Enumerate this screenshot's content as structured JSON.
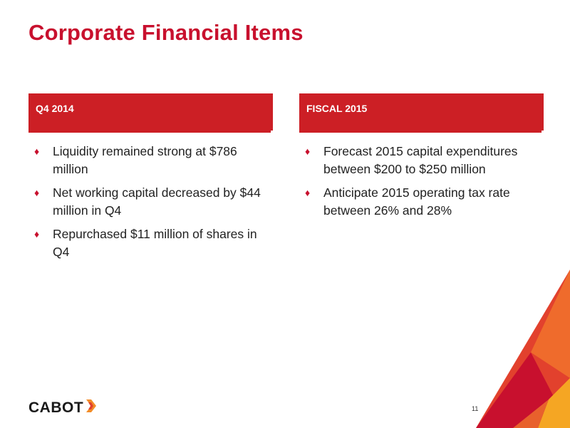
{
  "slide": {
    "title": "Corporate Financial Items",
    "page_number": "11"
  },
  "columns": [
    {
      "header": "Q4 2014",
      "bullets": [
        "Liquidity remained strong at $786 million",
        "Net working capital decreased by $44 million in Q4",
        "Repurchased $11 million of shares in Q4"
      ]
    },
    {
      "header": "FISCAL 2015",
      "bullets": [
        "Forecast 2015 capital expenditures between $200 to $250 million",
        "Anticipate 2015 operating tax rate between 26% and 28%"
      ]
    }
  ],
  "bullet_glyph": "♦",
  "logo": {
    "text": "CABOT",
    "icon": "cabot-chevron-logo-icon"
  },
  "colors": {
    "brand_red": "#c8102e",
    "header_red": "#cc1f25",
    "accent_orange": "#e8612c",
    "accent_light_orange": "#f28c28"
  }
}
